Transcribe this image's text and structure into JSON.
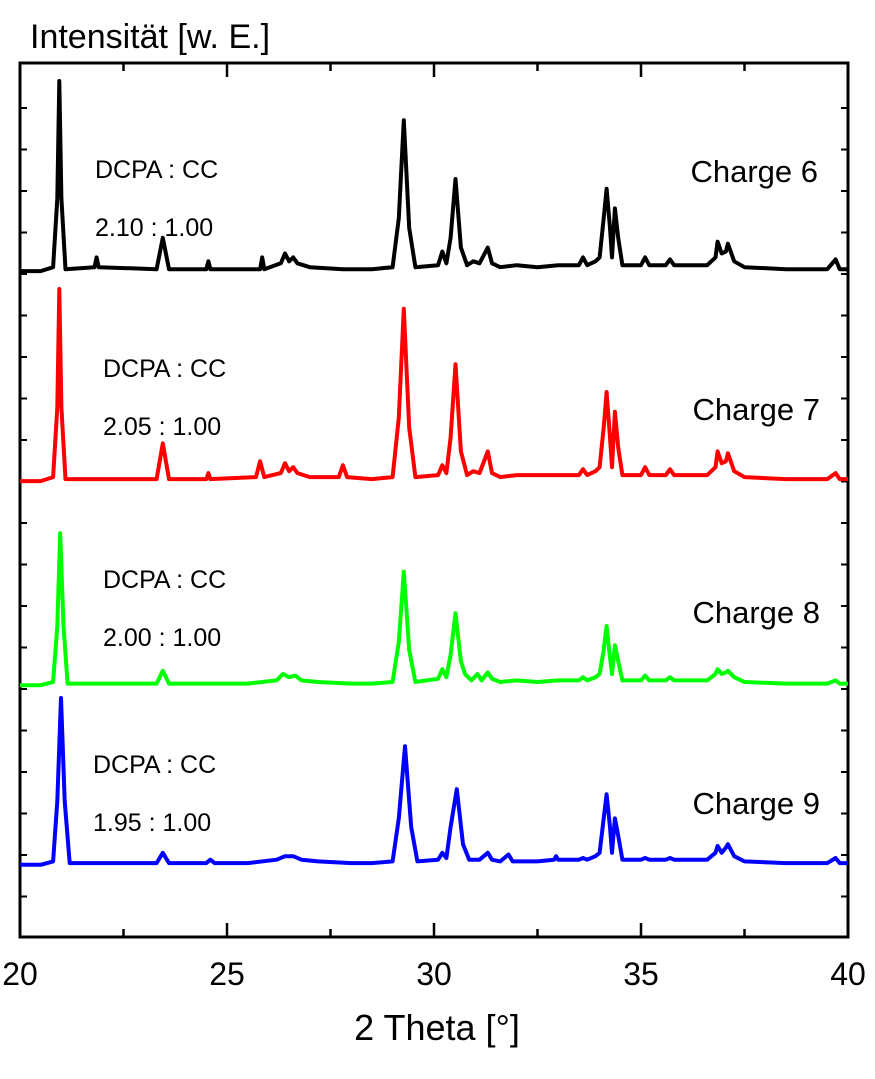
{
  "chart_data": {
    "type": "line",
    "ylabel": "Intensität [w. E.]",
    "xlabel": "2 Theta [°]",
    "xlim": [
      20,
      40
    ],
    "x_ticks": [
      "20",
      "25",
      "30",
      "35",
      "40"
    ],
    "y_ticks_labeled": false,
    "grid": false,
    "legend": "none",
    "series": [
      {
        "name": "Charge 6",
        "color": "#000000",
        "annotation": [
          "DCPA : CC",
          "2.10 : 1.00"
        ],
        "points": [
          [
            20.0,
            0.03
          ],
          [
            20.5,
            0.03
          ],
          [
            20.8,
            0.05
          ],
          [
            20.9,
            0.4
          ],
          [
            20.95,
            1.0
          ],
          [
            21.0,
            0.4
          ],
          [
            21.1,
            0.04
          ],
          [
            21.8,
            0.05
          ],
          [
            21.85,
            0.1
          ],
          [
            21.9,
            0.05
          ],
          [
            23.3,
            0.04
          ],
          [
            23.45,
            0.2
          ],
          [
            23.6,
            0.04
          ],
          [
            24.5,
            0.04
          ],
          [
            24.55,
            0.08
          ],
          [
            24.6,
            0.04
          ],
          [
            25.8,
            0.04
          ],
          [
            25.85,
            0.1
          ],
          [
            25.9,
            0.04
          ],
          [
            26.3,
            0.07
          ],
          [
            26.4,
            0.12
          ],
          [
            26.5,
            0.08
          ],
          [
            26.6,
            0.1
          ],
          [
            26.7,
            0.07
          ],
          [
            27.0,
            0.05
          ],
          [
            27.8,
            0.04
          ],
          [
            28.5,
            0.04
          ],
          [
            29.0,
            0.05
          ],
          [
            29.15,
            0.3
          ],
          [
            29.27,
            0.8
          ],
          [
            29.4,
            0.25
          ],
          [
            29.55,
            0.05
          ],
          [
            30.1,
            0.06
          ],
          [
            30.2,
            0.13
          ],
          [
            30.3,
            0.07
          ],
          [
            30.4,
            0.2
          ],
          [
            30.52,
            0.5
          ],
          [
            30.65,
            0.15
          ],
          [
            30.8,
            0.06
          ],
          [
            30.95,
            0.08
          ],
          [
            31.1,
            0.07
          ],
          [
            31.3,
            0.15
          ],
          [
            31.4,
            0.07
          ],
          [
            31.6,
            0.05
          ],
          [
            32.0,
            0.06
          ],
          [
            32.5,
            0.05
          ],
          [
            33.0,
            0.06
          ],
          [
            33.5,
            0.06
          ],
          [
            33.6,
            0.1
          ],
          [
            33.7,
            0.06
          ],
          [
            33.9,
            0.08
          ],
          [
            34.0,
            0.1
          ],
          [
            34.1,
            0.3
          ],
          [
            34.17,
            0.45
          ],
          [
            34.25,
            0.25
          ],
          [
            34.3,
            0.1
          ],
          [
            34.37,
            0.35
          ],
          [
            34.45,
            0.2
          ],
          [
            34.55,
            0.06
          ],
          [
            35.0,
            0.06
          ],
          [
            35.1,
            0.1
          ],
          [
            35.2,
            0.06
          ],
          [
            35.6,
            0.06
          ],
          [
            35.7,
            0.09
          ],
          [
            35.8,
            0.06
          ],
          [
            36.6,
            0.06
          ],
          [
            36.8,
            0.1
          ],
          [
            36.85,
            0.18
          ],
          [
            36.95,
            0.12
          ],
          [
            37.05,
            0.13
          ],
          [
            37.1,
            0.17
          ],
          [
            37.25,
            0.08
          ],
          [
            37.5,
            0.05
          ],
          [
            38.5,
            0.04
          ],
          [
            39.5,
            0.04
          ],
          [
            39.7,
            0.09
          ],
          [
            39.8,
            0.04
          ],
          [
            40.0,
            0.04
          ]
        ]
      },
      {
        "name": "Charge 7",
        "color": "#ff0000",
        "annotation": [
          "DCPA : CC",
          "2.05 : 1.00"
        ],
        "points": [
          [
            20.0,
            0.03
          ],
          [
            20.5,
            0.03
          ],
          [
            20.8,
            0.05
          ],
          [
            20.9,
            0.4
          ],
          [
            20.95,
            1.0
          ],
          [
            21.0,
            0.4
          ],
          [
            21.1,
            0.04
          ],
          [
            22.5,
            0.04
          ],
          [
            23.3,
            0.04
          ],
          [
            23.45,
            0.22
          ],
          [
            23.6,
            0.04
          ],
          [
            24.5,
            0.04
          ],
          [
            24.55,
            0.07
          ],
          [
            24.6,
            0.04
          ],
          [
            25.7,
            0.05
          ],
          [
            25.8,
            0.13
          ],
          [
            25.9,
            0.05
          ],
          [
            26.3,
            0.07
          ],
          [
            26.4,
            0.12
          ],
          [
            26.5,
            0.08
          ],
          [
            26.6,
            0.1
          ],
          [
            26.7,
            0.07
          ],
          [
            27.0,
            0.05
          ],
          [
            27.7,
            0.05
          ],
          [
            27.8,
            0.11
          ],
          [
            27.9,
            0.05
          ],
          [
            28.5,
            0.04
          ],
          [
            29.0,
            0.05
          ],
          [
            29.15,
            0.35
          ],
          [
            29.27,
            0.9
          ],
          [
            29.4,
            0.3
          ],
          [
            29.55,
            0.05
          ],
          [
            30.1,
            0.06
          ],
          [
            30.2,
            0.11
          ],
          [
            30.3,
            0.07
          ],
          [
            30.4,
            0.25
          ],
          [
            30.52,
            0.62
          ],
          [
            30.65,
            0.18
          ],
          [
            30.8,
            0.06
          ],
          [
            30.95,
            0.08
          ],
          [
            31.1,
            0.07
          ],
          [
            31.3,
            0.18
          ],
          [
            31.4,
            0.07
          ],
          [
            31.6,
            0.05
          ],
          [
            32.0,
            0.06
          ],
          [
            32.5,
            0.06
          ],
          [
            33.0,
            0.06
          ],
          [
            33.5,
            0.06
          ],
          [
            33.6,
            0.09
          ],
          [
            33.7,
            0.06
          ],
          [
            33.9,
            0.08
          ],
          [
            34.0,
            0.1
          ],
          [
            34.1,
            0.3
          ],
          [
            34.17,
            0.48
          ],
          [
            34.25,
            0.25
          ],
          [
            34.3,
            0.1
          ],
          [
            34.37,
            0.38
          ],
          [
            34.45,
            0.2
          ],
          [
            34.55,
            0.06
          ],
          [
            35.0,
            0.06
          ],
          [
            35.1,
            0.1
          ],
          [
            35.2,
            0.06
          ],
          [
            35.6,
            0.06
          ],
          [
            35.7,
            0.09
          ],
          [
            35.8,
            0.06
          ],
          [
            36.6,
            0.06
          ],
          [
            36.8,
            0.1
          ],
          [
            36.85,
            0.18
          ],
          [
            36.95,
            0.12
          ],
          [
            37.05,
            0.13
          ],
          [
            37.1,
            0.17
          ],
          [
            37.25,
            0.08
          ],
          [
            37.5,
            0.05
          ],
          [
            38.5,
            0.04
          ],
          [
            39.5,
            0.04
          ],
          [
            39.7,
            0.07
          ],
          [
            39.8,
            0.04
          ],
          [
            40.0,
            0.04
          ]
        ]
      },
      {
        "name": "Charge 8",
        "color": "#00ff00",
        "annotation": [
          "DCPA : CC",
          "2.00 : 1.00"
        ],
        "points": [
          [
            20.0,
            0.03
          ],
          [
            20.5,
            0.03
          ],
          [
            20.8,
            0.05
          ],
          [
            20.9,
            0.4
          ],
          [
            20.97,
            0.98
          ],
          [
            21.05,
            0.4
          ],
          [
            21.15,
            0.04
          ],
          [
            22.5,
            0.04
          ],
          [
            23.3,
            0.04
          ],
          [
            23.45,
            0.12
          ],
          [
            23.6,
            0.04
          ],
          [
            24.5,
            0.04
          ],
          [
            25.5,
            0.04
          ],
          [
            26.2,
            0.06
          ],
          [
            26.35,
            0.1
          ],
          [
            26.5,
            0.08
          ],
          [
            26.65,
            0.09
          ],
          [
            26.8,
            0.06
          ],
          [
            27.2,
            0.05
          ],
          [
            28.0,
            0.04
          ],
          [
            28.5,
            0.04
          ],
          [
            29.0,
            0.05
          ],
          [
            29.15,
            0.3
          ],
          [
            29.27,
            0.74
          ],
          [
            29.4,
            0.25
          ],
          [
            29.55,
            0.05
          ],
          [
            30.1,
            0.07
          ],
          [
            30.2,
            0.13
          ],
          [
            30.3,
            0.08
          ],
          [
            30.4,
            0.22
          ],
          [
            30.52,
            0.48
          ],
          [
            30.65,
            0.18
          ],
          [
            30.75,
            0.1
          ],
          [
            30.9,
            0.06
          ],
          [
            31.05,
            0.1
          ],
          [
            31.15,
            0.06
          ],
          [
            31.3,
            0.11
          ],
          [
            31.4,
            0.07
          ],
          [
            31.6,
            0.05
          ],
          [
            32.0,
            0.06
          ],
          [
            32.5,
            0.05
          ],
          [
            33.0,
            0.06
          ],
          [
            33.5,
            0.06
          ],
          [
            33.6,
            0.08
          ],
          [
            33.7,
            0.06
          ],
          [
            33.9,
            0.08
          ],
          [
            34.0,
            0.1
          ],
          [
            34.1,
            0.25
          ],
          [
            34.17,
            0.4
          ],
          [
            34.25,
            0.2
          ],
          [
            34.3,
            0.1
          ],
          [
            34.37,
            0.28
          ],
          [
            34.45,
            0.18
          ],
          [
            34.55,
            0.06
          ],
          [
            35.0,
            0.06
          ],
          [
            35.1,
            0.09
          ],
          [
            35.2,
            0.06
          ],
          [
            35.6,
            0.06
          ],
          [
            35.7,
            0.08
          ],
          [
            35.8,
            0.06
          ],
          [
            36.6,
            0.06
          ],
          [
            36.8,
            0.1
          ],
          [
            36.85,
            0.13
          ],
          [
            36.95,
            0.1
          ],
          [
            37.05,
            0.11
          ],
          [
            37.1,
            0.12
          ],
          [
            37.25,
            0.08
          ],
          [
            37.5,
            0.05
          ],
          [
            38.5,
            0.04
          ],
          [
            39.5,
            0.04
          ],
          [
            39.7,
            0.06
          ],
          [
            39.8,
            0.04
          ],
          [
            40.0,
            0.04
          ]
        ]
      },
      {
        "name": "Charge 9",
        "color": "#0000ff",
        "annotation": [
          "DCPA : CC",
          "1.95 : 1.00"
        ],
        "points": [
          [
            20.0,
            0.03
          ],
          [
            20.5,
            0.03
          ],
          [
            20.8,
            0.05
          ],
          [
            20.9,
            0.4
          ],
          [
            20.99,
            1.0
          ],
          [
            21.08,
            0.4
          ],
          [
            21.2,
            0.04
          ],
          [
            22.5,
            0.04
          ],
          [
            23.3,
            0.04
          ],
          [
            23.45,
            0.1
          ],
          [
            23.6,
            0.04
          ],
          [
            24.5,
            0.04
          ],
          [
            24.6,
            0.06
          ],
          [
            24.7,
            0.04
          ],
          [
            25.5,
            0.04
          ],
          [
            26.2,
            0.06
          ],
          [
            26.4,
            0.08
          ],
          [
            26.6,
            0.08
          ],
          [
            26.8,
            0.06
          ],
          [
            27.2,
            0.05
          ],
          [
            28.0,
            0.04
          ],
          [
            28.5,
            0.04
          ],
          [
            29.0,
            0.05
          ],
          [
            29.15,
            0.3
          ],
          [
            29.3,
            0.72
          ],
          [
            29.45,
            0.25
          ],
          [
            29.6,
            0.05
          ],
          [
            30.1,
            0.06
          ],
          [
            30.2,
            0.1
          ],
          [
            30.3,
            0.07
          ],
          [
            30.4,
            0.25
          ],
          [
            30.55,
            0.47
          ],
          [
            30.7,
            0.15
          ],
          [
            30.85,
            0.06
          ],
          [
            31.1,
            0.06
          ],
          [
            31.3,
            0.1
          ],
          [
            31.4,
            0.06
          ],
          [
            31.6,
            0.05
          ],
          [
            31.8,
            0.09
          ],
          [
            31.9,
            0.05
          ],
          [
            32.5,
            0.05
          ],
          [
            32.9,
            0.06
          ],
          [
            32.95,
            0.08
          ],
          [
            33.0,
            0.06
          ],
          [
            33.5,
            0.06
          ],
          [
            33.6,
            0.07
          ],
          [
            33.7,
            0.06
          ],
          [
            33.9,
            0.08
          ],
          [
            34.0,
            0.1
          ],
          [
            34.1,
            0.3
          ],
          [
            34.17,
            0.44
          ],
          [
            34.25,
            0.25
          ],
          [
            34.3,
            0.1
          ],
          [
            34.37,
            0.3
          ],
          [
            34.45,
            0.2
          ],
          [
            34.55,
            0.06
          ],
          [
            35.0,
            0.06
          ],
          [
            35.1,
            0.07
          ],
          [
            35.2,
            0.06
          ],
          [
            35.6,
            0.06
          ],
          [
            35.7,
            0.07
          ],
          [
            35.8,
            0.06
          ],
          [
            36.6,
            0.06
          ],
          [
            36.8,
            0.1
          ],
          [
            36.85,
            0.14
          ],
          [
            36.95,
            0.1
          ],
          [
            37.05,
            0.13
          ],
          [
            37.1,
            0.15
          ],
          [
            37.25,
            0.08
          ],
          [
            37.5,
            0.05
          ],
          [
            38.5,
            0.04
          ],
          [
            39.5,
            0.04
          ],
          [
            39.7,
            0.07
          ],
          [
            39.8,
            0.04
          ],
          [
            40.0,
            0.04
          ]
        ]
      }
    ]
  }
}
